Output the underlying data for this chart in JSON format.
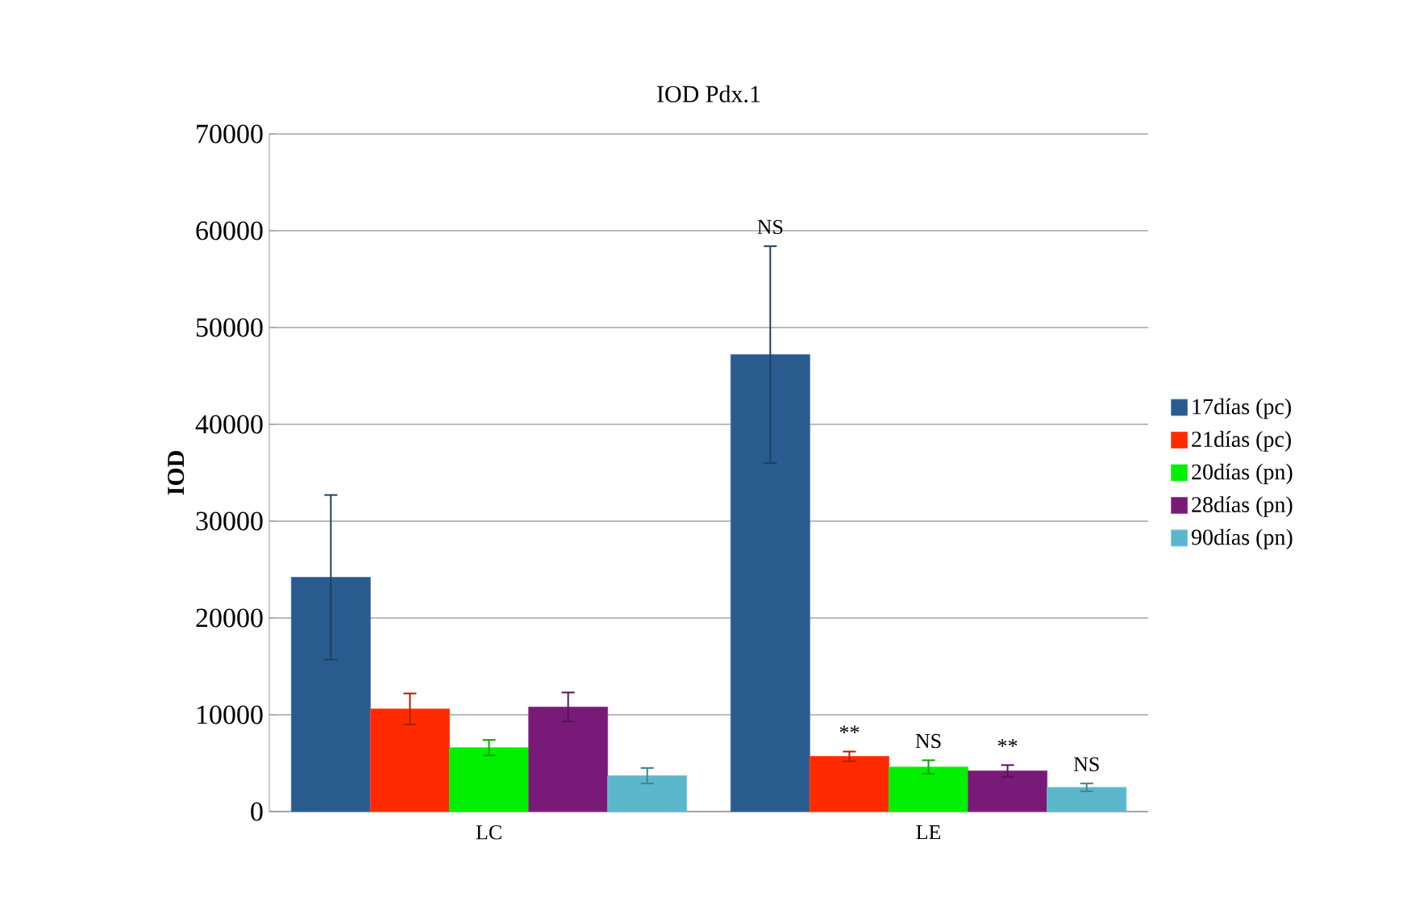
{
  "chart_data": {
    "type": "bar",
    "title": "IOD  Pdx.1",
    "ylabel": "IOD",
    "categories": [
      "LC",
      "LE"
    ],
    "series": [
      {
        "name": "17días (pc)",
        "color": "#2a5b8f",
        "values": [
          24200,
          47200
        ],
        "errors": [
          8500,
          11200
        ]
      },
      {
        "name": "21días (pc)",
        "color": "#ff2a00",
        "values": [
          10600,
          5700
        ],
        "errors": [
          1600,
          500
        ]
      },
      {
        "name": "20días (pn)",
        "color": "#00f000",
        "values": [
          6600,
          4600
        ],
        "errors": [
          800,
          700
        ]
      },
      {
        "name": "28días (pn)",
        "color": "#7a1a78",
        "values": [
          10800,
          4200
        ],
        "errors": [
          1500,
          600
        ]
      },
      {
        "name": "90días (pn)",
        "color": "#5bb8cc",
        "values": [
          3700,
          2500
        ],
        "errors": [
          800,
          400
        ]
      }
    ],
    "annotations": [
      "NS",
      "**",
      "NS",
      "**",
      "NS"
    ],
    "ylim": [
      0,
      70000
    ],
    "yticks": [
      0,
      10000,
      20000,
      30000,
      40000,
      50000,
      60000,
      70000
    ],
    "grid": "y",
    "legend": "right"
  }
}
